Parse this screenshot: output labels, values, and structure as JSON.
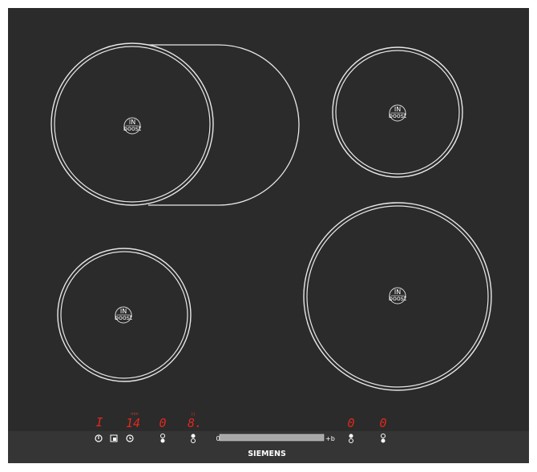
{
  "brand": "SIEMENS",
  "colors": {
    "glass": "#2b2b2b",
    "panel": "#353535",
    "display": "#e0281e",
    "ring": "#e8e8e8"
  },
  "zones": [
    {
      "id": "front-left-flex",
      "badge_top": "IN",
      "badge_bottom": "boost"
    },
    {
      "id": "rear-right",
      "badge_top": "IN",
      "badge_bottom": "boost"
    },
    {
      "id": "front-left",
      "badge_top": "IN",
      "badge_bottom": "boost"
    },
    {
      "id": "front-right",
      "badge_top": "IN",
      "badge_bottom": "boost"
    }
  ],
  "displays": {
    "indicator": "I",
    "timer_label": "min",
    "timer": "14",
    "zone1": "0",
    "zone2": "8.",
    "zone2_label": "|-|",
    "zone3": "0",
    "zone4": "0"
  },
  "slider": {
    "min_label": "0",
    "max_label": "+b"
  },
  "icons": [
    "power-icon",
    "child-lock-icon",
    "timer-icon",
    "zone-select-icon"
  ]
}
